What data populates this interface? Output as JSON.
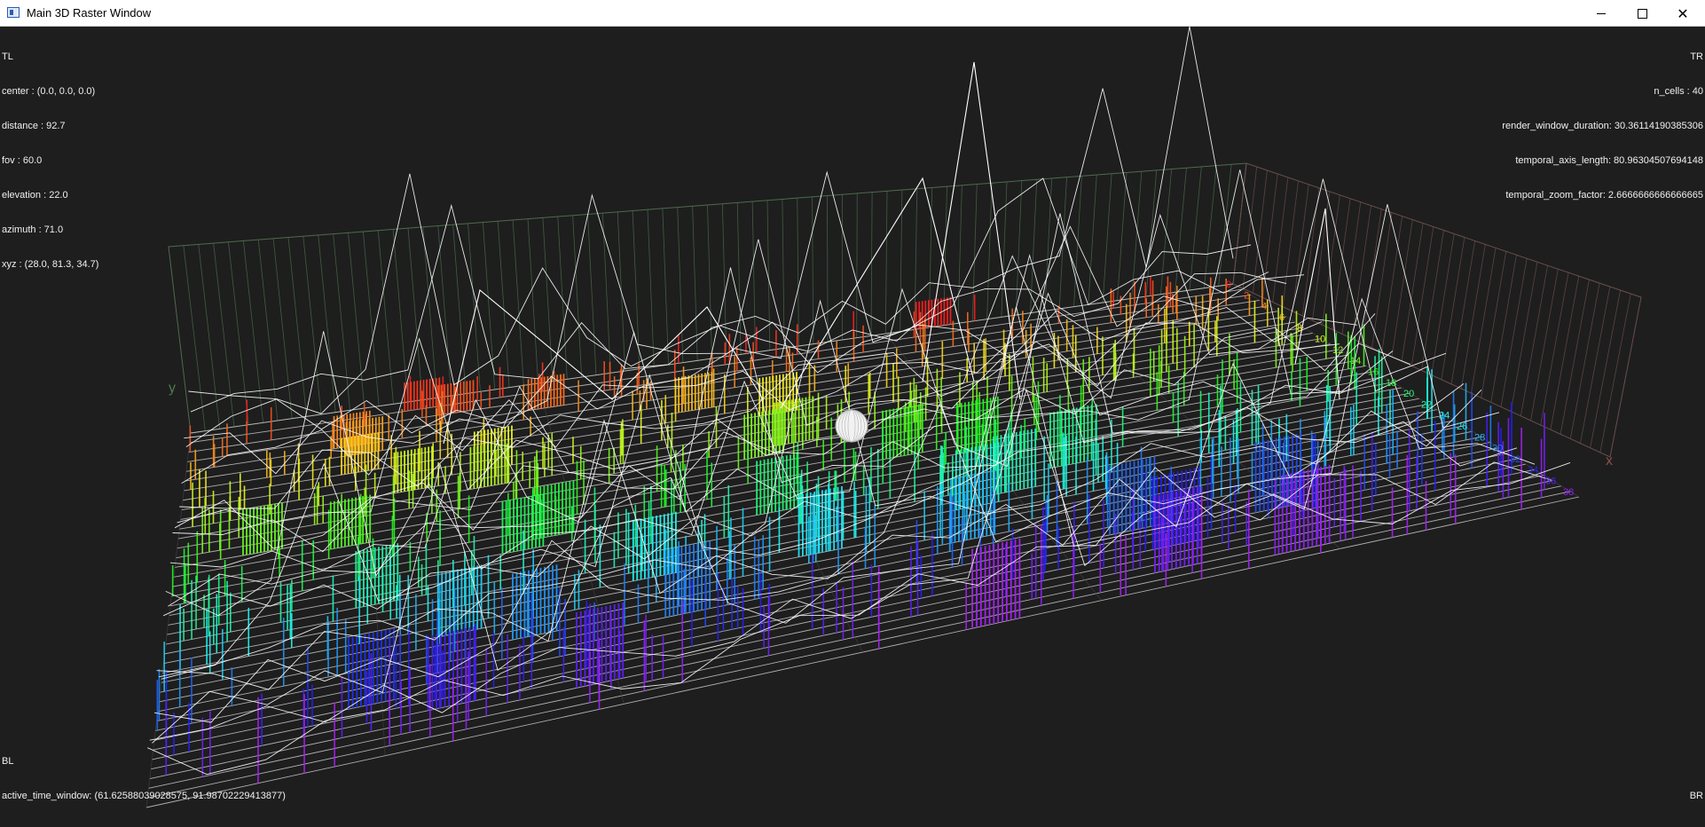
{
  "window": {
    "title": "Main 3D Raster Window",
    "minimize_glyph": "—",
    "maximize_glyph": "☐",
    "close_glyph": "✕"
  },
  "overlay": {
    "tl": {
      "corner": "TL",
      "center": "center : (0.0, 0.0, 0.0)",
      "distance": "distance : 92.7",
      "fov": "fov : 60.0",
      "elevation": "elevation : 22.0",
      "azimuth": "azimuth : 71.0",
      "xyz": "xyz : (28.0, 81.3, 34.7)"
    },
    "tr": {
      "corner": "TR",
      "n_cells": "n_cells : 40",
      "render_window_duration": "render_window_duration: 30.36114190385306",
      "temporal_axis_length": "temporal_axis_length: 80.96304507694148",
      "temporal_zoom_factor": "temporal_zoom_factor: 2.6666666666666665"
    },
    "bl": {
      "corner": "BL",
      "active_time_window": "active_time_window: (61.62588039028575, 91.98702229413877)"
    },
    "br": {
      "corner": "BR"
    }
  },
  "scene": {
    "axis_labels": {
      "y": "y",
      "x": "x"
    },
    "colors": {
      "background": "#1e1e1e",
      "grid_green": "#4d6b4d",
      "grid_red": "#6b4d4d",
      "trace": "#ffffff",
      "floor": "#c8c8c8"
    }
  }
}
